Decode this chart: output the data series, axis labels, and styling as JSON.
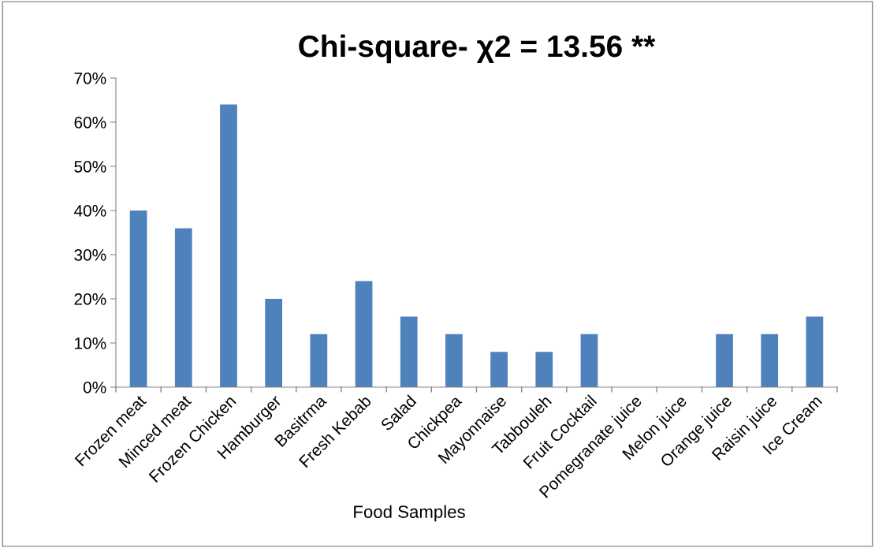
{
  "chart_data": {
    "type": "bar",
    "title": "Chi-square- χ2 = 13.56 **",
    "xlabel": "Food Samples",
    "categories": [
      "Frozen meat",
      "Minced meat",
      "Frozen Chicken",
      "Hamburger",
      "Basitrma",
      "Fresh Kebab",
      "Salad",
      "Chickpea",
      "Mayonnaise",
      "Tabbouleh",
      "Fruit Cocktail",
      "Pomegranate juice",
      "Melon juice",
      "Orange juice",
      "Raisin juice",
      "Ice Cream"
    ],
    "values": [
      40,
      36,
      64,
      20,
      12,
      24,
      16,
      12,
      8,
      8,
      12,
      0,
      0,
      12,
      12,
      16
    ],
    "color": "#4f81bd",
    "ylim": [
      0,
      70
    ],
    "yticks": [
      {
        "value": 0,
        "label": "0%"
      },
      {
        "value": 10,
        "label": "10%"
      },
      {
        "value": 20,
        "label": "20%"
      },
      {
        "value": 30,
        "label": "30%"
      },
      {
        "value": 40,
        "label": "40%"
      },
      {
        "value": 50,
        "label": "50%"
      },
      {
        "value": 60,
        "label": "60%"
      },
      {
        "value": 70,
        "label": "70%"
      }
    ],
    "grid": false,
    "legend": false
  }
}
